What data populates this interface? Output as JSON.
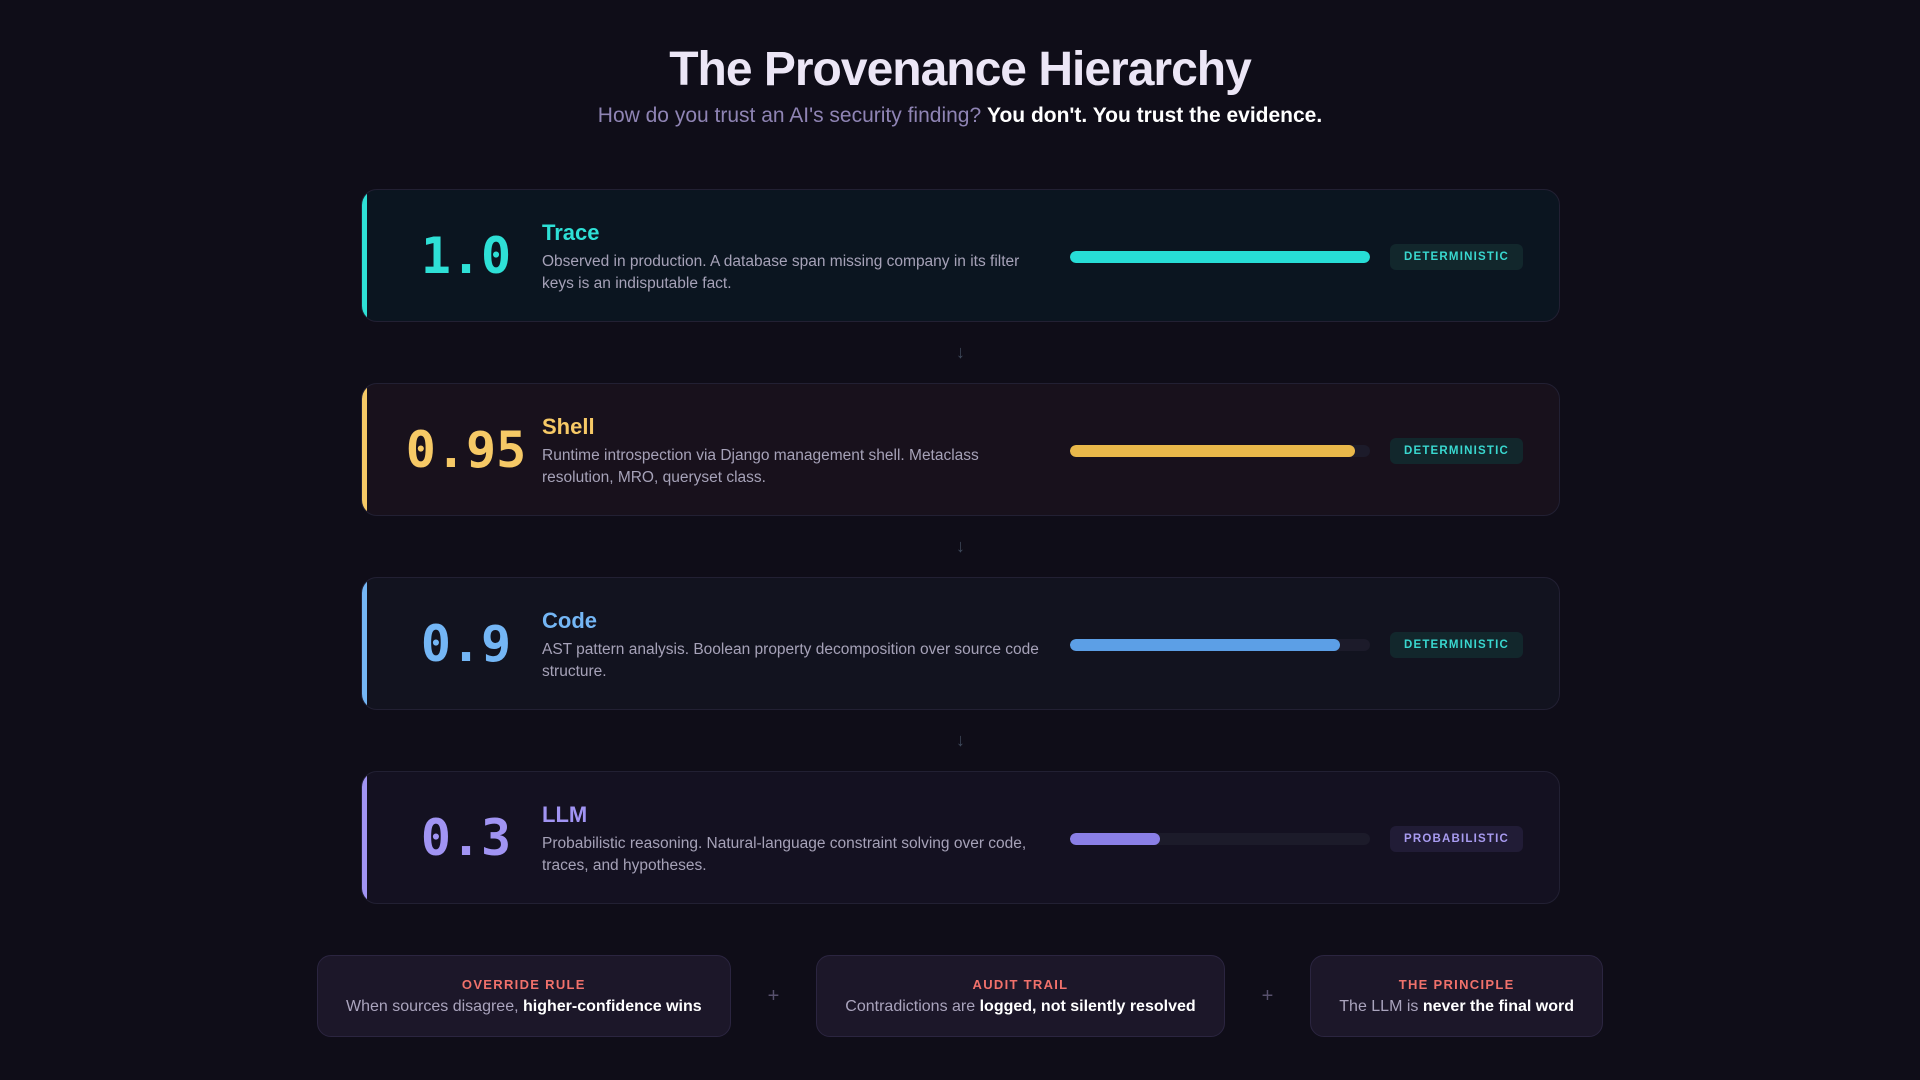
{
  "header": {
    "title": "The Provenance Hierarchy",
    "subtitle_prefix": "How do you trust an AI's security finding?",
    "subtitle_emphasis": "You don't. You trust the evidence."
  },
  "tiers": [
    {
      "score": "1.0",
      "confidence": 1.0,
      "name": "Trace",
      "description": "Observed in production. A database span missing company in its filter keys is an indisputable fact.",
      "badge": "DETERMINISTIC",
      "color": "#2ee0d6",
      "bar_color": "#27ddd6",
      "card_bg": "#0b1520",
      "badge_bg": "#12272c",
      "badge_color": "#39d7cf"
    },
    {
      "score": "0.95",
      "confidence": 0.95,
      "name": "Shell",
      "description": "Runtime introspection via Django management shell. Metaclass resolution, MRO, queryset class.",
      "badge": "DETERMINISTIC",
      "color": "#f6c966",
      "bar_color": "#e9b84a",
      "card_bg": "#18111c",
      "badge_bg": "#12272c",
      "badge_color": "#39d7cf"
    },
    {
      "score": "0.9",
      "confidence": 0.9,
      "name": "Code",
      "description": "AST pattern analysis. Boolean property decomposition over source code structure.",
      "badge": "DETERMINISTIC",
      "color": "#74b6f5",
      "bar_color": "#5c9fe6",
      "card_bg": "#12131f",
      "badge_bg": "#12272c",
      "badge_color": "#39d7cf"
    },
    {
      "score": "0.3",
      "confidence": 0.3,
      "name": "LLM",
      "description": "Probabilistic reasoning. Natural-language constraint solving over code, traces, and hypotheses.",
      "badge": "PROBABILISTIC",
      "color": "#a194f3",
      "bar_color": "#8a7fe6",
      "card_bg": "#141121",
      "badge_bg": "#211c36",
      "badge_color": "#a89bf0"
    }
  ],
  "arrow_glyph": "↓",
  "principles": [
    {
      "label": "OVERRIDE RULE",
      "text_prefix": "When sources disagree,",
      "text_emphasis": "higher-confidence wins"
    },
    {
      "label": "AUDIT TRAIL",
      "text_prefix": "Contradictions are",
      "text_emphasis": "logged, not silently resolved"
    },
    {
      "label": "THE PRINCIPLE",
      "text_prefix": "The LLM is",
      "text_emphasis": "never the final word"
    }
  ],
  "separator_glyph": "+"
}
